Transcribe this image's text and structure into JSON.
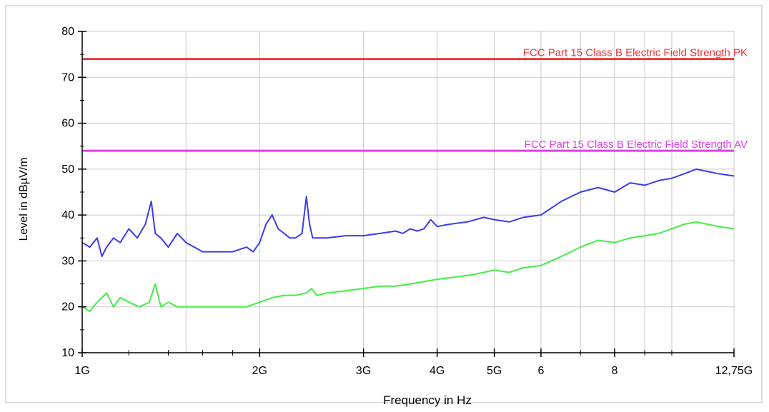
{
  "chart_data": {
    "type": "line",
    "title": "",
    "xlabel": "Frequency in Hz",
    "ylabel": "Level in dBµV/m",
    "x_scale": "log",
    "x_unit": "GHz",
    "xlim": [
      1,
      12.75
    ],
    "ylim": [
      10,
      80
    ],
    "grid": true,
    "x_ticks": [
      {
        "value": 1,
        "label": "1G"
      },
      {
        "value": 2,
        "label": "2G"
      },
      {
        "value": 3,
        "label": "3G"
      },
      {
        "value": 4,
        "label": "4G"
      },
      {
        "value": 5,
        "label": "5G"
      },
      {
        "value": 6,
        "label": "6"
      },
      {
        "value": 8,
        "label": "8"
      },
      {
        "value": 12.75,
        "label": "12,75G"
      }
    ],
    "x_grid": [
      1.5,
      2,
      3,
      4,
      5,
      6,
      7,
      8,
      9,
      10,
      12.75
    ],
    "x_minor_ticks": [
      1.2,
      1.4,
      1.6,
      1.8,
      7,
      9,
      10
    ],
    "y_ticks": [
      10,
      20,
      30,
      40,
      50,
      60,
      70,
      80
    ],
    "y_minor_ticks": [
      15,
      25,
      35,
      45,
      55,
      65,
      75
    ],
    "limit_lines": [
      {
        "label": "FCC Part 15 Class B Electric Field Strength PK",
        "value": 74,
        "color": "#e8393b"
      },
      {
        "label": "FCC Part 15 Class B Electric Field Strength AV",
        "value": 54,
        "color": "#e040e8"
      }
    ],
    "series": [
      {
        "color": "#3b3bf0",
        "x": [
          1.0,
          1.03,
          1.06,
          1.08,
          1.1,
          1.13,
          1.16,
          1.2,
          1.24,
          1.28,
          1.31,
          1.33,
          1.36,
          1.4,
          1.45,
          1.5,
          1.55,
          1.6,
          1.7,
          1.8,
          1.9,
          1.95,
          2.0,
          2.05,
          2.1,
          2.15,
          2.2,
          2.25,
          2.3,
          2.36,
          2.4,
          2.43,
          2.46,
          2.5,
          2.6,
          2.8,
          3.0,
          3.2,
          3.4,
          3.5,
          3.6,
          3.7,
          3.8,
          3.9,
          4.0,
          4.2,
          4.5,
          4.8,
          5.0,
          5.3,
          5.6,
          6.0,
          6.5,
          7.0,
          7.5,
          8.0,
          8.5,
          9.0,
          9.5,
          10.0,
          10.5,
          11.0,
          11.5,
          12.0,
          12.75
        ],
        "y": [
          34,
          33,
          35,
          31,
          33,
          35,
          34,
          37,
          35,
          38,
          43,
          36,
          35,
          33,
          36,
          34,
          33,
          32,
          32,
          32,
          33,
          32,
          34,
          38,
          40,
          37,
          36,
          35,
          35,
          36,
          44,
          38,
          35,
          35,
          35,
          35.5,
          35.5,
          36,
          36.5,
          36,
          37,
          36.5,
          37,
          39,
          37.5,
          38,
          38.5,
          39.5,
          39,
          38.5,
          39.5,
          40,
          43,
          45,
          46,
          45,
          47,
          46.5,
          47.5,
          48,
          49,
          50,
          49.5,
          49,
          48.5
        ]
      },
      {
        "color": "#44ee44",
        "x": [
          1.0,
          1.03,
          1.06,
          1.1,
          1.13,
          1.16,
          1.2,
          1.25,
          1.3,
          1.33,
          1.36,
          1.4,
          1.45,
          1.5,
          1.6,
          1.7,
          1.8,
          1.9,
          2.0,
          2.1,
          2.2,
          2.3,
          2.4,
          2.45,
          2.5,
          2.6,
          2.8,
          3.0,
          3.2,
          3.4,
          3.6,
          3.8,
          4.0,
          4.3,
          4.6,
          5.0,
          5.3,
          5.6,
          6.0,
          6.5,
          7.0,
          7.5,
          8.0,
          8.5,
          9.0,
          9.5,
          10.0,
          10.5,
          11.0,
          11.5,
          12.0,
          12.75
        ],
        "y": [
          20,
          19,
          21,
          23,
          20,
          22,
          21,
          20,
          21,
          25,
          20,
          21,
          20,
          20,
          20,
          20,
          20,
          20,
          21,
          22,
          22.5,
          22.5,
          23,
          24,
          22.5,
          23,
          23.5,
          24,
          24.5,
          24.5,
          25,
          25.5,
          26,
          26.5,
          27,
          28,
          27.5,
          28.5,
          29,
          31,
          33,
          34.5,
          34,
          35,
          35.5,
          36,
          37,
          38,
          38.5,
          38,
          37.5,
          37
        ]
      }
    ]
  }
}
